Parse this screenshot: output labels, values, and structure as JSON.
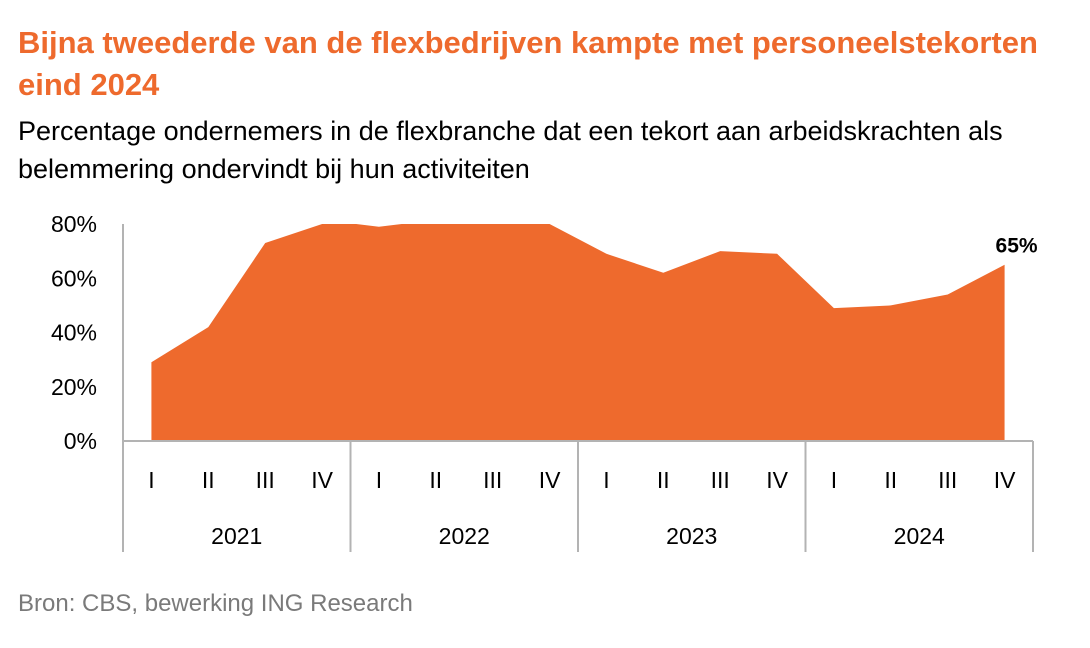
{
  "colors": {
    "title": "#ee6a2d",
    "area": "#ee6a2d",
    "axis": "#b3b3b3",
    "text": "#000000",
    "source": "#7a7a7a"
  },
  "chart_data": {
    "type": "area",
    "title": "Bijna tweederde van de flexbedrijven kampte met personeelstekorten eind 2024",
    "subtitle": "Percentage ondernemers in de flexbranche dat een tekort aan arbeidskrachten als belemmering ondervindt bij hun activiteiten",
    "source": "Bron: CBS, bewerking ING Research",
    "ylim": [
      0,
      80
    ],
    "yticks": [
      0,
      20,
      40,
      60,
      80
    ],
    "ytick_labels": [
      "0%",
      "20%",
      "40%",
      "60%",
      "80%"
    ],
    "grid": false,
    "years": [
      "2021",
      "2022",
      "2023",
      "2024"
    ],
    "quarters": [
      "I",
      "II",
      "III",
      "IV"
    ],
    "points": [
      {
        "t": 0.0,
        "y": 29
      },
      {
        "t": 1.0,
        "y": 42
      },
      {
        "t": 2.0,
        "y": 73
      },
      {
        "t": 3.0,
        "y": 80
      },
      {
        "t": 3.6,
        "y": 80
      },
      {
        "t": 4.0,
        "y": 79
      },
      {
        "t": 4.4,
        "y": 80
      },
      {
        "t": 6.0,
        "y": 80
      },
      {
        "t": 7.0,
        "y": 80
      },
      {
        "t": 8.0,
        "y": 69
      },
      {
        "t": 9.0,
        "y": 62
      },
      {
        "t": 10.0,
        "y": 70
      },
      {
        "t": 11.0,
        "y": 69
      },
      {
        "t": 12.0,
        "y": 49
      },
      {
        "t": 13.0,
        "y": 50
      },
      {
        "t": 14.0,
        "y": 54
      },
      {
        "t": 15.0,
        "y": 65
      }
    ],
    "data_label": "65%"
  }
}
